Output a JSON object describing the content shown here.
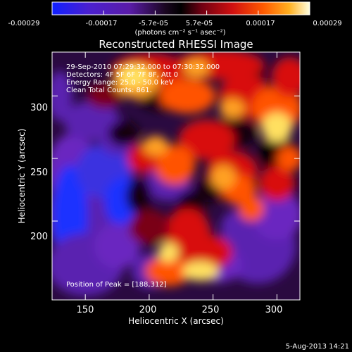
{
  "colorbar": {
    "tick_labels": [
      "-0.00029",
      "-0.00017",
      "-5.7e-05",
      "5.7e-05",
      "0.00017",
      "0.00029"
    ],
    "unit_label": "(photons cm⁻² s⁻¹ asec⁻²)",
    "range": [
      -0.00029,
      0.00029
    ]
  },
  "chart_data": {
    "type": "heatmap",
    "title": "Reconstructed RHESSI Image",
    "xlabel": "Heliocentric X (arcsec)",
    "ylabel": "Heliocentric Y (arcsec)",
    "xlim": [
      124,
      318
    ],
    "ylim": [
      137,
      335
    ],
    "x_ticks": [
      150,
      200,
      250,
      300
    ],
    "y_ticks": [
      200,
      250,
      300
    ],
    "annotations": [
      "29-Sep-2010 07:29:32.000 to 07:30:32.000",
      "Detectors: 4F 5F 6F 7F 8F, Att 0",
      "Energy Range: 25.0 - 50.0 keV",
      "Clean    Total Counts: 861."
    ],
    "peak_label": "Position of Peak = [188,312]",
    "peak": [
      188,
      312
    ],
    "palette": [
      "#1020ff",
      "#3a1fc0",
      "#5a1cb0",
      "#2a0a40",
      "#0a0408",
      "#6a0010",
      "#c81010",
      "#ff4a00",
      "#ffa020",
      "#ffe060",
      "#ffffe0"
    ]
  },
  "footer": {
    "date": "5-Aug-2013 14:21"
  }
}
